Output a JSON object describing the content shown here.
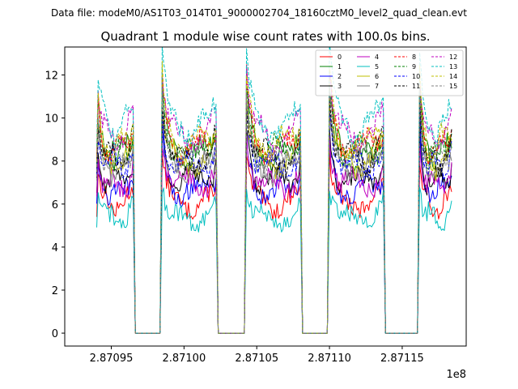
{
  "figure": {
    "suptitle": "Data file: modeM0/AS1T03_014T01_9000002704_18160cztM0_level2_quad_clean.evt",
    "background": "#ffffff"
  },
  "chart_data": {
    "type": "line",
    "title": "Quadrant 1 module wise count rates with 100.0s bins.",
    "xlabel": "",
    "ylabel": "",
    "x_offset_label": "1e8",
    "xlim": [
      2.870918,
      2.871194
    ],
    "ylim": [
      -0.6,
      13.3
    ],
    "xticks": [
      2.87095,
      2.871,
      2.87105,
      2.8711,
      2.87115
    ],
    "xtick_labels": [
      "2.87095",
      "2.87100",
      "2.87105",
      "2.87110",
      "2.87115"
    ],
    "yticks": [
      0,
      2,
      4,
      6,
      8,
      10,
      12
    ],
    "ytick_labels": [
      "0",
      "2",
      "4",
      "6",
      "8",
      "10",
      "12"
    ],
    "legend": {
      "placement": "top-right",
      "columns": 4
    },
    "orbit_segments": [
      {
        "start": 2.87094,
        "end": 2.870965
      },
      {
        "start": 2.870985,
        "end": 2.871022
      },
      {
        "start": 2.871043,
        "end": 2.87108
      },
      {
        "start": 2.8711,
        "end": 2.871137
      },
      {
        "start": 2.871162,
        "end": 2.871184
      }
    ],
    "bin_width": 1e-06,
    "series": [
      {
        "name": "0",
        "color": "#ff0000",
        "dash": "solid",
        "base_rate": 6.0
      },
      {
        "name": "1",
        "color": "#008000",
        "dash": "solid",
        "base_rate": 8.3
      },
      {
        "name": "2",
        "color": "#0000ff",
        "dash": "solid",
        "base_rate": 6.6
      },
      {
        "name": "3",
        "color": "#000000",
        "dash": "solid",
        "base_rate": 7.1
      },
      {
        "name": "4",
        "color": "#bf00bf",
        "dash": "solid",
        "base_rate": 6.9
      },
      {
        "name": "5",
        "color": "#00bfbf",
        "dash": "solid",
        "base_rate": 5.3
      },
      {
        "name": "6",
        "color": "#bfbf00",
        "dash": "solid",
        "base_rate": 7.9
      },
      {
        "name": "7",
        "color": "#808080",
        "dash": "solid",
        "base_rate": 7.6
      },
      {
        "name": "8",
        "color": "#ff0000",
        "dash": "dashed",
        "base_rate": 8.6
      },
      {
        "name": "9",
        "color": "#008000",
        "dash": "dashed",
        "base_rate": 8.4
      },
      {
        "name": "10",
        "color": "#0000ff",
        "dash": "dashed",
        "base_rate": 7.8
      },
      {
        "name": "11",
        "color": "#000000",
        "dash": "dashed",
        "base_rate": 8.1
      },
      {
        "name": "12",
        "color": "#bf00bf",
        "dash": "dashed",
        "base_rate": 9.1
      },
      {
        "name": "13",
        "color": "#00bfbf",
        "dash": "dashed",
        "base_rate": 9.6
      },
      {
        "name": "14",
        "color": "#bfbf00",
        "dash": "dashed",
        "base_rate": 8.8
      },
      {
        "name": "15",
        "color": "#808080",
        "dash": "dashed",
        "base_rate": 8.0
      }
    ]
  }
}
